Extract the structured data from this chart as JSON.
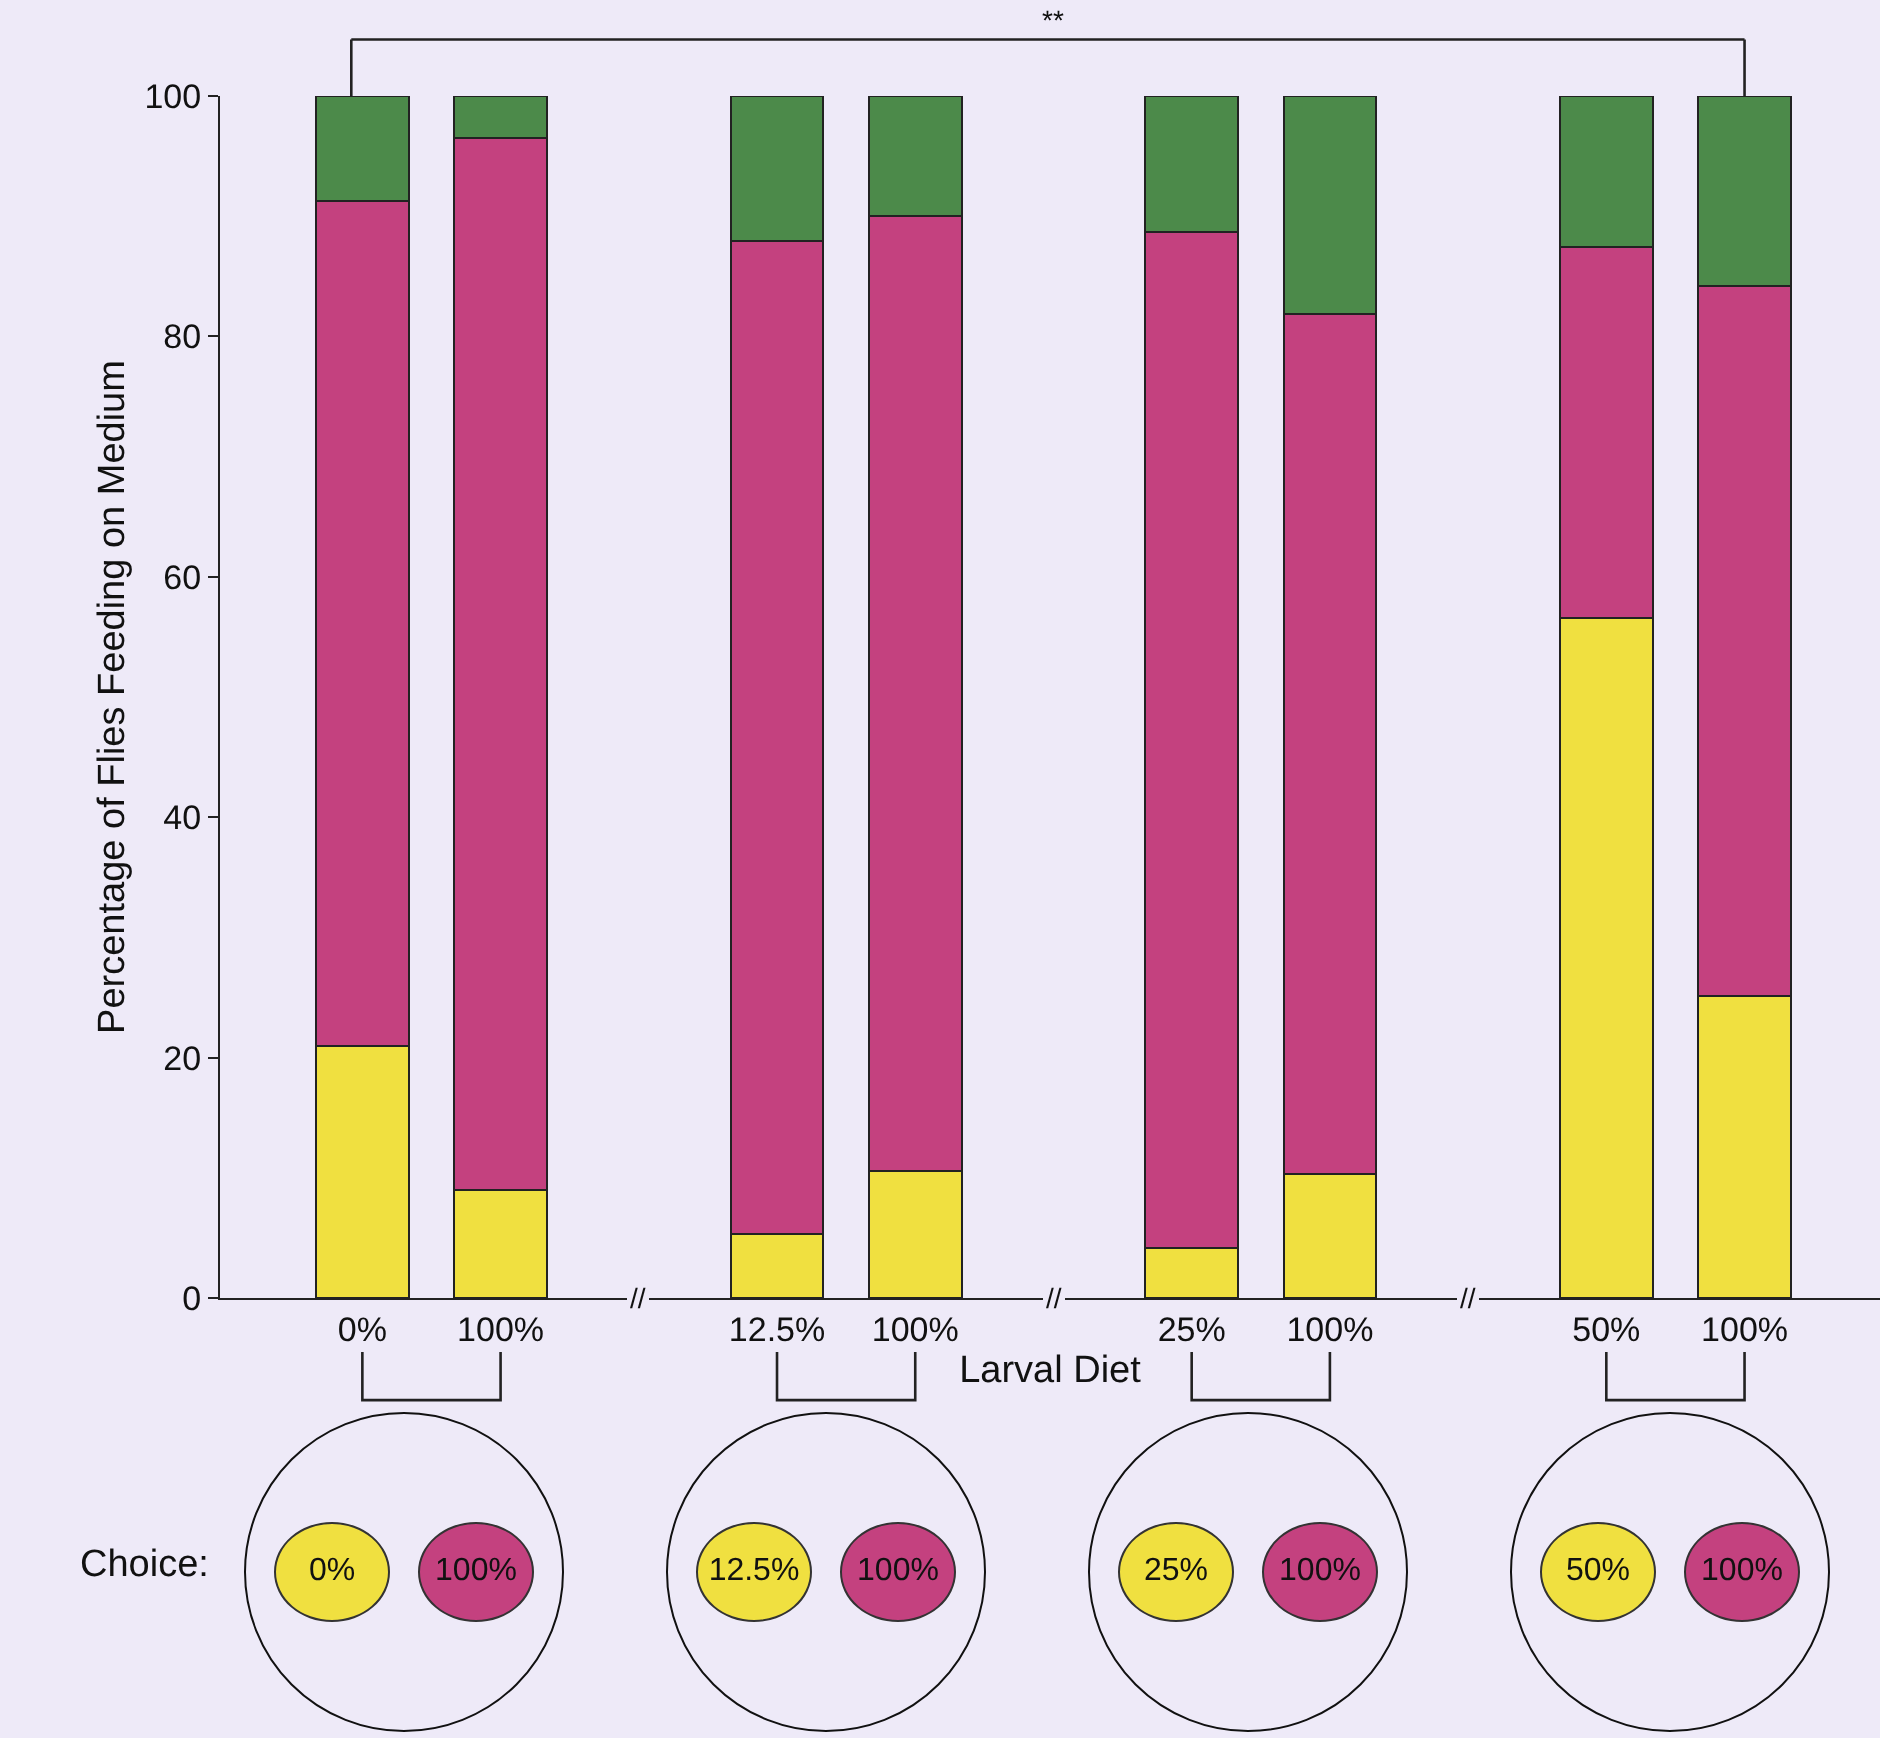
{
  "chart_data": {
    "type": "bar",
    "stacked": true,
    "categories": [
      "0%",
      "100%",
      "12.5%",
      "100%",
      "25%",
      "100%",
      "50%",
      "100%"
    ],
    "xlabel": "Larval Diet",
    "ylabel": "Percentage of Flies Feeding on Medium",
    "series": [
      {
        "color": "#f0e040",
        "values": [
          21,
          9,
          5.3,
          10.6,
          4.2,
          10.3,
          56.6,
          25.1
        ]
      },
      {
        "color": "#c4417f",
        "values": [
          70.3,
          87.5,
          82.6,
          79.4,
          84.5,
          71.6,
          30.8,
          59.1
        ]
      },
      {
        "color": "#4c8a4a",
        "values": [
          8.7,
          3.5,
          12.1,
          10,
          11.3,
          18.1,
          12.6,
          15.8
        ]
      }
    ],
    "ylim": [
      0,
      100
    ],
    "yticks": [
      0,
      20,
      40,
      60,
      80,
      100
    ],
    "annotations": [
      "**",
      "//",
      "//",
      "//",
      "Choice:",
      "0%",
      "100%",
      "12.5%",
      "100%",
      "25%",
      "100%",
      "50%",
      "100%"
    ]
  }
}
